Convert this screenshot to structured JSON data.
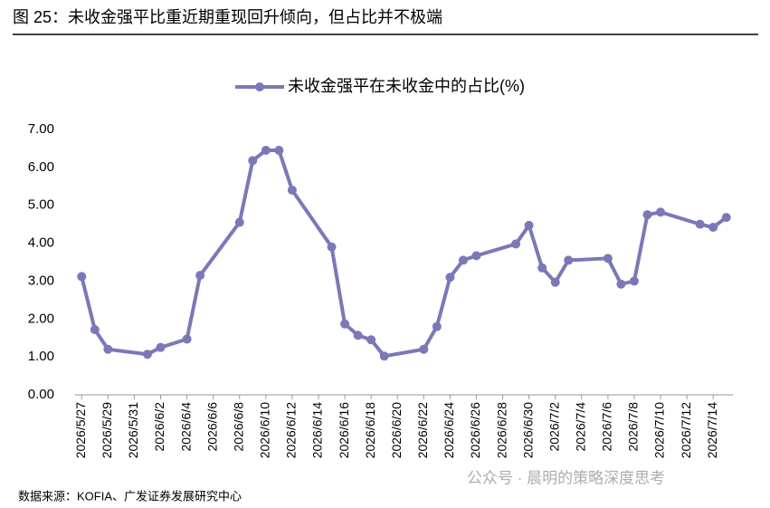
{
  "chart_data": {
    "type": "line",
    "title": "图 25：未收金强平比重近期重现回升倾向，但占比并不极端",
    "source": "数据来源：KOFIA、广发证券发展研究中心",
    "watermark": "公众号 · 晨明的策略深度思考",
    "x": [
      "2026/5/27",
      "2026/5/28",
      "2026/5/29",
      "2026/6/1",
      "2026/6/2",
      "2026/6/4",
      "2026/6/5",
      "2026/6/8",
      "2026/6/9",
      "2026/6/10",
      "2026/6/11",
      "2026/6/12",
      "2026/6/15",
      "2026/6/16",
      "2026/6/17",
      "2026/6/18",
      "2026/6/19",
      "2026/6/22",
      "2026/6/23",
      "2026/6/24",
      "2026/6/25",
      "2026/6/26",
      "2026/6/29",
      "2026/6/30",
      "2026/7/1",
      "2026/7/2",
      "2026/7/3",
      "2026/7/6",
      "2026/7/7",
      "2026/7/8",
      "2026/7/9",
      "2026/7/10",
      "2026/7/13",
      "2026/7/14",
      "2026/7/15"
    ],
    "series": [
      {
        "name": "未收金强平在未收金中的占比(%)",
        "color": "#7b78b8",
        "values": [
          3.12,
          1.72,
          1.2,
          1.07,
          1.25,
          1.47,
          3.15,
          4.55,
          6.18,
          6.45,
          6.45,
          5.4,
          3.9,
          1.87,
          1.57,
          1.45,
          1.02,
          1.2,
          1.8,
          3.1,
          3.55,
          3.67,
          3.98,
          4.47,
          3.35,
          2.97,
          3.55,
          3.6,
          2.92,
          3.0,
          4.75,
          4.82,
          4.5,
          4.42,
          4.68
        ]
      }
    ],
    "xlim": [
      "2026/5/27",
      "2026/7/15"
    ],
    "xticks": [
      "2026/5/27",
      "2026/5/29",
      "2026/5/31",
      "2026/6/2",
      "2026/6/4",
      "2026/6/6",
      "2026/6/8",
      "2026/6/10",
      "2026/6/12",
      "2026/6/14",
      "2026/6/16",
      "2026/6/18",
      "2026/6/20",
      "2026/6/22",
      "2026/6/24",
      "2026/6/26",
      "2026/6/28",
      "2026/6/30",
      "2026/7/2",
      "2026/7/4",
      "2026/7/6",
      "2026/7/8",
      "2026/7/10",
      "2026/7/12",
      "2026/7/14"
    ],
    "ylim": [
      0,
      7
    ],
    "yticks": [
      {
        "value": 0,
        "label": "0.00"
      },
      {
        "value": 1,
        "label": "1.00"
      },
      {
        "value": 2,
        "label": "2.00"
      },
      {
        "value": 3,
        "label": "3.00"
      },
      {
        "value": 4,
        "label": "4.00"
      },
      {
        "value": 5,
        "label": "5.00"
      },
      {
        "value": 6,
        "label": "6.00"
      },
      {
        "value": 7,
        "label": "7.00"
      }
    ],
    "legend": "top"
  }
}
